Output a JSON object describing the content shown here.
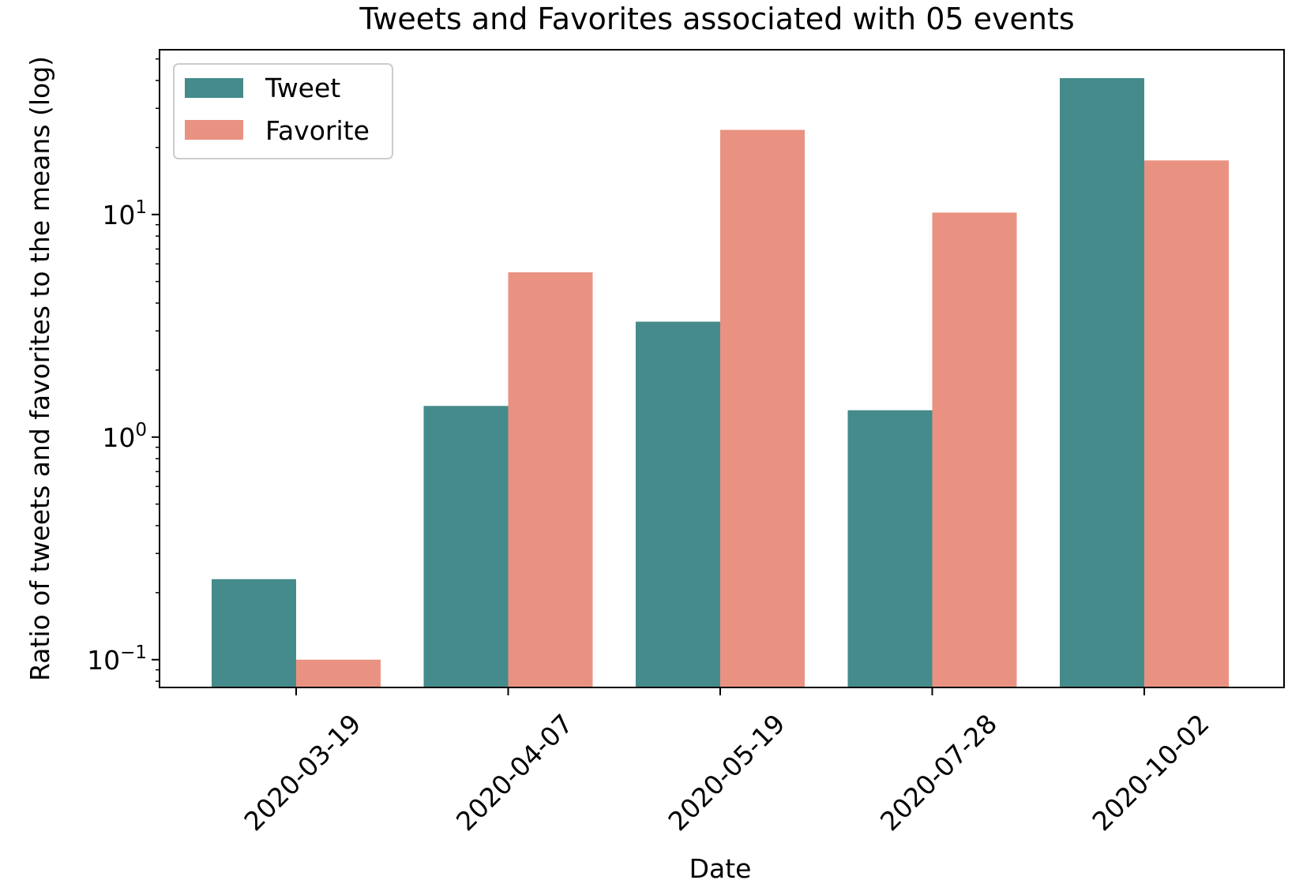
{
  "chart_data": {
    "type": "bar",
    "title": "Tweets and Favorites associated with 05 events",
    "xlabel": "Date",
    "ylabel": "Ratio of tweets and favorites to the means (log)",
    "yscale": "log",
    "ylim": [
      0.075,
      55
    ],
    "yticks": [
      {
        "value": 0.1,
        "base": "10",
        "exp": "−1"
      },
      {
        "value": 1,
        "base": "10",
        "exp": "0"
      },
      {
        "value": 10,
        "base": "10",
        "exp": "1"
      }
    ],
    "categories": [
      "2020-03-19",
      "2020-04-07",
      "2020-05-19",
      "2020-07-28",
      "2020-10-02"
    ],
    "series": [
      {
        "name": "Tweet",
        "color": "#458b8b",
        "values": [
          0.23,
          1.38,
          3.3,
          1.32,
          41
        ]
      },
      {
        "name": "Favorite",
        "color": "#ea9282",
        "values": [
          0.1,
          5.5,
          24,
          10.2,
          17.5
        ]
      }
    ],
    "legend_position": "upper-left",
    "grid": false
  }
}
